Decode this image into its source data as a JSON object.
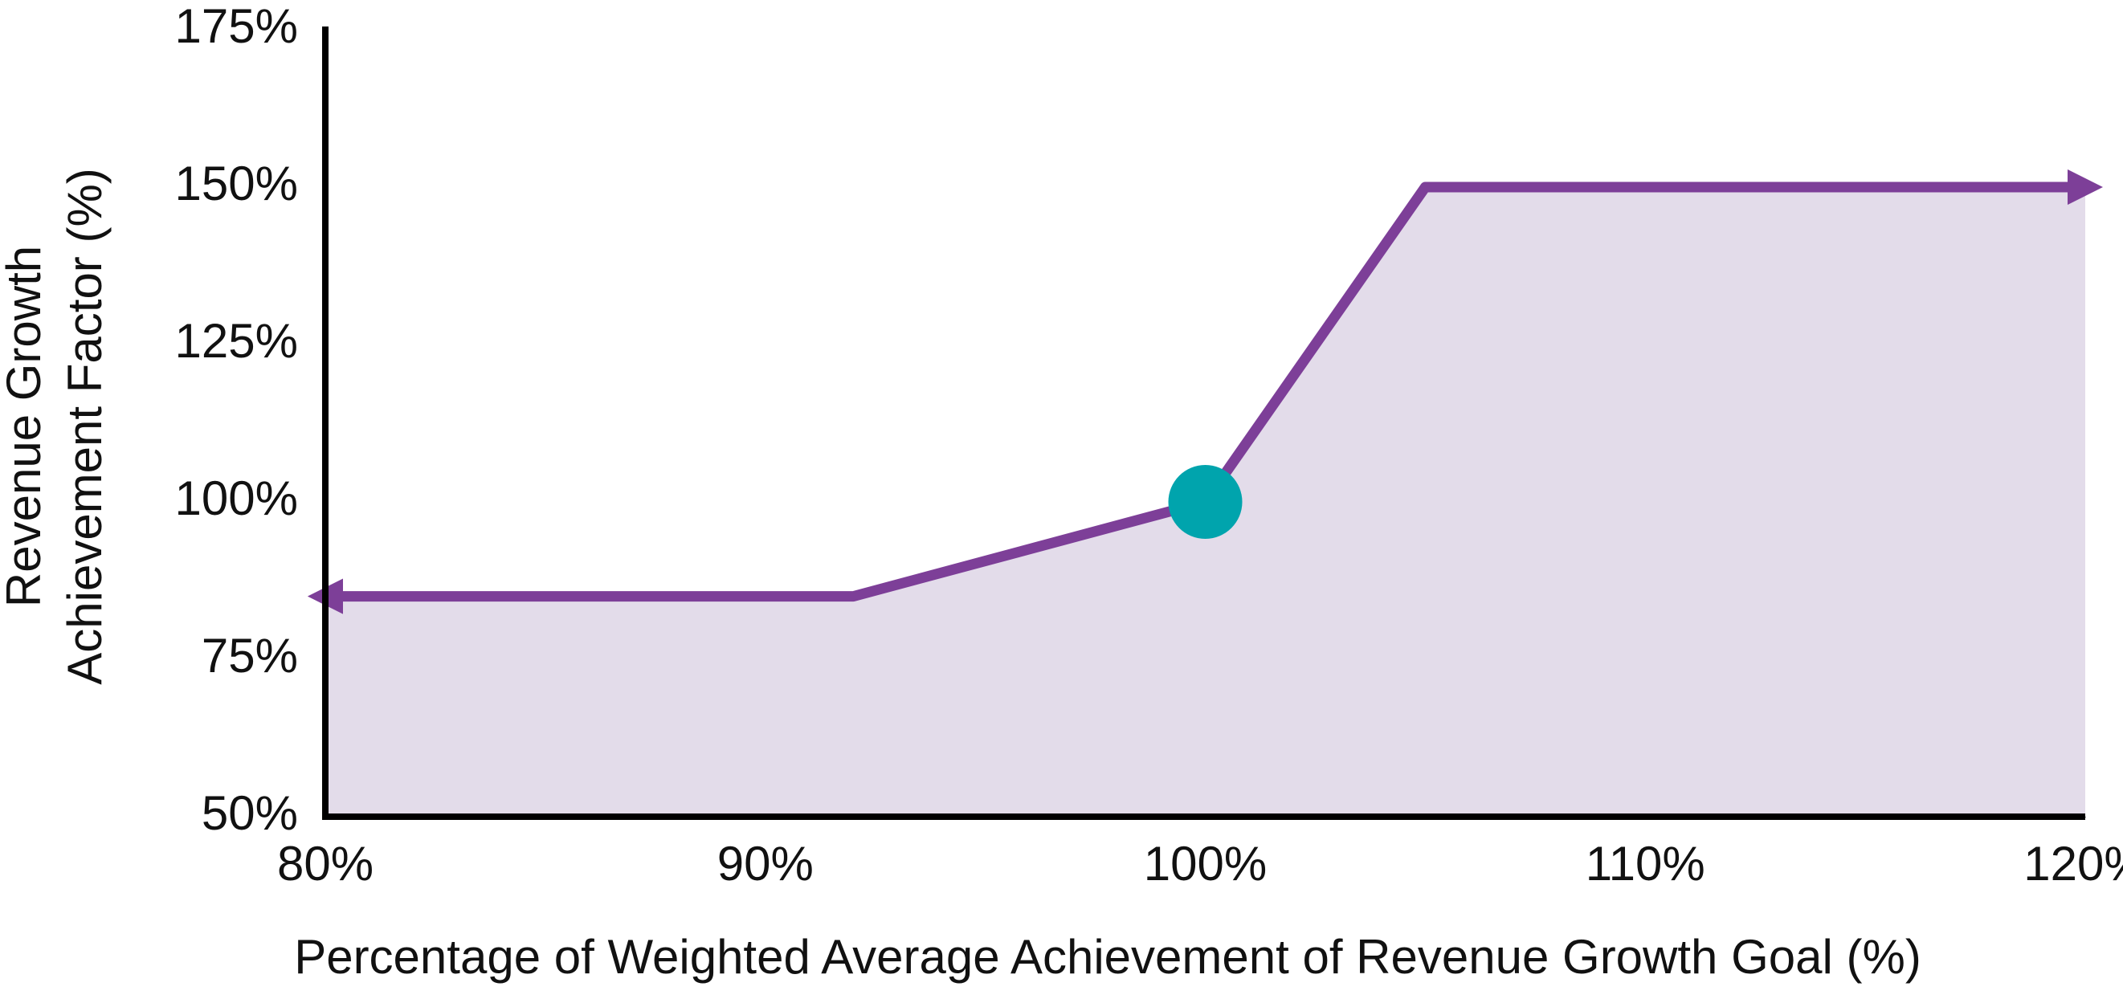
{
  "chart_data": {
    "type": "line",
    "x_label": "Percentage of Weighted Average Achievement of Revenue Growth Goal (%)",
    "y_label": [
      "Revenue Growth",
      "Achievement Factor (%)"
    ],
    "x": [
      80,
      92,
      100,
      105,
      120
    ],
    "series": [
      {
        "values": [
          85,
          85,
          100,
          150,
          150
        ],
        "color": "#7d3f98",
        "fill": "#e3dcea"
      }
    ],
    "marker": {
      "x": 100,
      "y": 100,
      "color": "#00a4ad"
    },
    "xlim": [
      80,
      120
    ],
    "ylim": [
      50,
      175
    ],
    "xticks": [
      {
        "value": 80,
        "label": "80%"
      },
      {
        "value": 90,
        "label": "90%"
      },
      {
        "value": 100,
        "label": "100%"
      },
      {
        "value": 110,
        "label": "110%"
      },
      {
        "value": 120,
        "label": "120%"
      }
    ],
    "yticks": [
      {
        "value": 50,
        "label": "50%"
      },
      {
        "value": 75,
        "label": "75%"
      },
      {
        "value": 100,
        "label": "100%"
      },
      {
        "value": 125,
        "label": "125%"
      },
      {
        "value": 150,
        "label": "150%"
      },
      {
        "value": 175,
        "label": "175%"
      }
    ],
    "grid": false
  }
}
